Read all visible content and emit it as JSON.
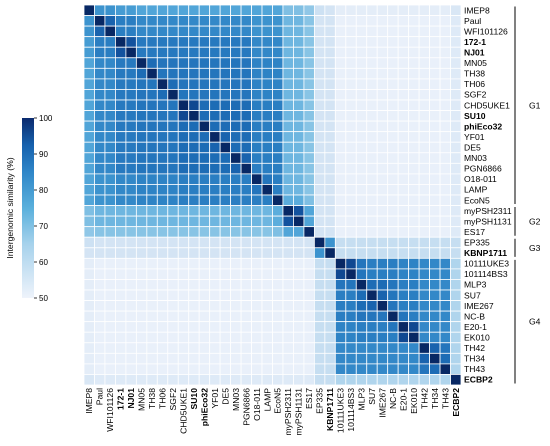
{
  "chart_data": {
    "type": "heatmap",
    "labels": [
      "IMEP8",
      "Paul",
      "WFI101126",
      "172-1",
      "NJ01",
      "MN05",
      "TH38",
      "TH06",
      "SGF2",
      "CHD5UKE1",
      "SU10",
      "phiEco32",
      "YF01",
      "DE5",
      "MN03",
      "PGN6866",
      "O18-011",
      "LAMP",
      "EcoN5",
      "myPSH2311",
      "myPSH1131",
      "ES17",
      "EP335",
      "KBNP1711",
      "10111UKE3",
      "101114BS3",
      "MLP3",
      "SU7",
      "IME267",
      "NC-B",
      "E20-1",
      "EK010",
      "TH42",
      "TH34",
      "TH43",
      "ECBP2"
    ],
    "bold_labels": [
      "172-1",
      "NJ01",
      "SU10",
      "phiEco32",
      "KBNP1711",
      "ECBP2"
    ],
    "groups": [
      {
        "name": "G1",
        "start": 0,
        "end": 18
      },
      {
        "name": "G2",
        "start": 19,
        "end": 21
      },
      {
        "name": "G3",
        "start": 22,
        "end": 23
      },
      {
        "name": "G4",
        "start": 24,
        "end": 35
      }
    ],
    "colorbar": {
      "label": "Intergenomic similarity (%)",
      "min": 50,
      "max": 100,
      "ticks": [
        50,
        60,
        70,
        80,
        90,
        100
      ]
    },
    "cells_note": "pairwise similarity values estimated from colour; matrix is symmetric, diagonal = 100",
    "values": [
      [
        100,
        76,
        76,
        74,
        74,
        72,
        72,
        72,
        72,
        72,
        72,
        72,
        72,
        72,
        72,
        72,
        72,
        72,
        72,
        66,
        66,
        64,
        56,
        55,
        52,
        52,
        52,
        52,
        52,
        52,
        52,
        52,
        52,
        52,
        52,
        54
      ],
      [
        76,
        100,
        86,
        80,
        80,
        78,
        78,
        78,
        78,
        78,
        78,
        78,
        78,
        78,
        78,
        78,
        76,
        76,
        76,
        68,
        68,
        65,
        55,
        55,
        51,
        51,
        51,
        51,
        51,
        51,
        51,
        51,
        51,
        51,
        51,
        53
      ],
      [
        76,
        86,
        100,
        80,
        80,
        78,
        78,
        78,
        78,
        78,
        78,
        78,
        78,
        78,
        78,
        78,
        76,
        76,
        76,
        68,
        68,
        65,
        55,
        55,
        51,
        51,
        51,
        51,
        51,
        51,
        51,
        51,
        51,
        51,
        51,
        53
      ],
      [
        74,
        80,
        80,
        100,
        90,
        81,
        81,
        81,
        81,
        81,
        81,
        81,
        81,
        81,
        81,
        81,
        78,
        78,
        78,
        68,
        68,
        65,
        55,
        55,
        51,
        51,
        51,
        51,
        51,
        51,
        51,
        51,
        51,
        51,
        51,
        53
      ],
      [
        74,
        80,
        80,
        90,
        100,
        81,
        81,
        81,
        81,
        81,
        81,
        81,
        81,
        81,
        81,
        81,
        78,
        78,
        78,
        68,
        68,
        65,
        55,
        55,
        51,
        51,
        51,
        51,
        51,
        51,
        51,
        51,
        51,
        51,
        51,
        53
      ],
      [
        72,
        78,
        78,
        81,
        81,
        100,
        84,
        82,
        82,
        82,
        82,
        82,
        82,
        82,
        82,
        82,
        79,
        79,
        79,
        68,
        68,
        65,
        55,
        55,
        51,
        51,
        51,
        51,
        51,
        51,
        51,
        51,
        51,
        51,
        51,
        53
      ],
      [
        72,
        78,
        78,
        81,
        81,
        84,
        100,
        82,
        82,
        82,
        82,
        82,
        82,
        82,
        82,
        82,
        79,
        79,
        79,
        68,
        68,
        65,
        55,
        55,
        51,
        51,
        51,
        51,
        51,
        51,
        51,
        51,
        51,
        51,
        51,
        53
      ],
      [
        72,
        78,
        78,
        81,
        81,
        82,
        82,
        100,
        84,
        82,
        82,
        82,
        82,
        82,
        82,
        82,
        79,
        79,
        79,
        68,
        68,
        65,
        55,
        55,
        51,
        51,
        51,
        51,
        51,
        51,
        51,
        51,
        51,
        51,
        51,
        53
      ],
      [
        72,
        78,
        78,
        81,
        81,
        82,
        82,
        84,
        100,
        82,
        82,
        82,
        82,
        82,
        82,
        82,
        79,
        79,
        79,
        68,
        68,
        65,
        55,
        55,
        51,
        51,
        51,
        51,
        51,
        51,
        51,
        51,
        51,
        51,
        51,
        53
      ],
      [
        72,
        78,
        78,
        81,
        81,
        82,
        82,
        82,
        82,
        100,
        92,
        84,
        84,
        84,
        84,
        84,
        80,
        80,
        80,
        68,
        68,
        65,
        55,
        55,
        51,
        51,
        51,
        51,
        51,
        51,
        51,
        51,
        51,
        51,
        51,
        53
      ],
      [
        72,
        78,
        78,
        81,
        81,
        82,
        82,
        82,
        82,
        92,
        100,
        84,
        84,
        84,
        84,
        84,
        80,
        80,
        80,
        68,
        68,
        65,
        55,
        55,
        51,
        51,
        51,
        51,
        51,
        51,
        51,
        51,
        51,
        51,
        51,
        53
      ],
      [
        72,
        78,
        78,
        81,
        81,
        82,
        82,
        82,
        82,
        84,
        84,
        100,
        84,
        84,
        84,
        84,
        80,
        80,
        80,
        68,
        68,
        65,
        55,
        55,
        51,
        51,
        51,
        51,
        51,
        51,
        51,
        51,
        51,
        51,
        51,
        53
      ],
      [
        72,
        78,
        78,
        81,
        81,
        82,
        82,
        82,
        82,
        84,
        84,
        84,
        100,
        86,
        84,
        84,
        80,
        80,
        80,
        68,
        68,
        65,
        55,
        55,
        51,
        51,
        51,
        51,
        51,
        51,
        51,
        51,
        51,
        51,
        51,
        53
      ],
      [
        72,
        78,
        78,
        81,
        81,
        82,
        82,
        82,
        82,
        84,
        84,
        84,
        86,
        100,
        84,
        84,
        80,
        80,
        80,
        68,
        68,
        65,
        55,
        55,
        51,
        51,
        51,
        51,
        51,
        51,
        51,
        51,
        51,
        51,
        51,
        53
      ],
      [
        72,
        78,
        78,
        81,
        81,
        82,
        82,
        82,
        82,
        84,
        84,
        84,
        84,
        84,
        100,
        86,
        80,
        80,
        80,
        68,
        68,
        65,
        55,
        55,
        51,
        51,
        51,
        51,
        51,
        51,
        51,
        51,
        51,
        51,
        51,
        53
      ],
      [
        72,
        78,
        78,
        81,
        81,
        82,
        82,
        82,
        82,
        84,
        84,
        84,
        84,
        84,
        86,
        100,
        80,
        80,
        80,
        68,
        68,
        65,
        55,
        55,
        51,
        51,
        51,
        51,
        51,
        51,
        51,
        51,
        51,
        51,
        51,
        53
      ],
      [
        72,
        76,
        76,
        78,
        78,
        79,
        79,
        79,
        79,
        80,
        80,
        80,
        80,
        80,
        80,
        80,
        100,
        82,
        80,
        68,
        68,
        65,
        55,
        55,
        51,
        51,
        51,
        51,
        51,
        51,
        51,
        51,
        51,
        51,
        51,
        53
      ],
      [
        72,
        76,
        76,
        78,
        78,
        79,
        79,
        79,
        79,
        80,
        80,
        80,
        80,
        80,
        80,
        80,
        82,
        100,
        80,
        68,
        68,
        65,
        55,
        55,
        51,
        51,
        51,
        51,
        51,
        51,
        51,
        51,
        51,
        51,
        51,
        53
      ],
      [
        72,
        76,
        76,
        78,
        78,
        79,
        79,
        79,
        79,
        80,
        80,
        80,
        80,
        80,
        80,
        80,
        80,
        80,
        100,
        70,
        70,
        66,
        55,
        55,
        51,
        51,
        51,
        51,
        51,
        51,
        51,
        51,
        51,
        51,
        51,
        53
      ],
      [
        66,
        68,
        68,
        68,
        68,
        68,
        68,
        68,
        68,
        68,
        68,
        68,
        68,
        68,
        68,
        68,
        68,
        68,
        70,
        100,
        90,
        72,
        55,
        55,
        51,
        51,
        51,
        51,
        51,
        51,
        51,
        51,
        51,
        51,
        51,
        53
      ],
      [
        66,
        68,
        68,
        68,
        68,
        68,
        68,
        68,
        68,
        68,
        68,
        68,
        68,
        68,
        68,
        68,
        68,
        68,
        70,
        90,
        100,
        72,
        55,
        55,
        51,
        51,
        51,
        51,
        51,
        51,
        51,
        51,
        51,
        51,
        51,
        53
      ],
      [
        64,
        65,
        65,
        65,
        65,
        65,
        65,
        65,
        65,
        65,
        65,
        65,
        65,
        65,
        65,
        65,
        65,
        65,
        66,
        72,
        72,
        100,
        55,
        55,
        51,
        51,
        51,
        51,
        51,
        51,
        51,
        51,
        51,
        51,
        51,
        53
      ],
      [
        56,
        55,
        55,
        55,
        55,
        55,
        55,
        55,
        55,
        55,
        55,
        55,
        55,
        55,
        55,
        55,
        55,
        55,
        55,
        55,
        55,
        55,
        100,
        76,
        57,
        57,
        57,
        57,
        57,
        57,
        57,
        57,
        57,
        57,
        57,
        57
      ],
      [
        55,
        55,
        55,
        55,
        55,
        55,
        55,
        55,
        55,
        55,
        55,
        55,
        55,
        55,
        55,
        55,
        55,
        55,
        55,
        55,
        55,
        55,
        76,
        100,
        57,
        57,
        57,
        57,
        57,
        57,
        57,
        57,
        57,
        57,
        57,
        57
      ],
      [
        52,
        51,
        51,
        51,
        51,
        51,
        51,
        51,
        51,
        51,
        51,
        51,
        51,
        51,
        51,
        51,
        51,
        51,
        51,
        51,
        51,
        51,
        57,
        57,
        100,
        92,
        82,
        80,
        80,
        80,
        79,
        79,
        78,
        78,
        78,
        60
      ],
      [
        52,
        51,
        51,
        51,
        51,
        51,
        51,
        51,
        51,
        51,
        51,
        51,
        51,
        51,
        51,
        51,
        51,
        51,
        51,
        51,
        51,
        51,
        57,
        57,
        92,
        100,
        82,
        80,
        80,
        80,
        79,
        79,
        78,
        78,
        78,
        60
      ],
      [
        52,
        51,
        51,
        51,
        51,
        51,
        51,
        51,
        51,
        51,
        51,
        51,
        51,
        51,
        51,
        51,
        51,
        51,
        51,
        51,
        51,
        51,
        57,
        57,
        82,
        82,
        100,
        84,
        84,
        82,
        80,
        80,
        78,
        78,
        78,
        60
      ],
      [
        52,
        51,
        51,
        51,
        51,
        51,
        51,
        51,
        51,
        51,
        51,
        51,
        51,
        51,
        51,
        51,
        51,
        51,
        51,
        51,
        51,
        51,
        57,
        57,
        80,
        80,
        84,
        100,
        86,
        82,
        80,
        80,
        78,
        78,
        78,
        60
      ],
      [
        52,
        51,
        51,
        51,
        51,
        51,
        51,
        51,
        51,
        51,
        51,
        51,
        51,
        51,
        51,
        51,
        51,
        51,
        51,
        51,
        51,
        51,
        57,
        57,
        80,
        80,
        84,
        86,
        100,
        82,
        80,
        80,
        78,
        78,
        78,
        60
      ],
      [
        52,
        51,
        51,
        51,
        51,
        51,
        51,
        51,
        51,
        51,
        51,
        51,
        51,
        51,
        51,
        51,
        51,
        51,
        51,
        51,
        51,
        51,
        57,
        57,
        80,
        80,
        82,
        82,
        82,
        100,
        82,
        80,
        78,
        78,
        78,
        60
      ],
      [
        52,
        51,
        51,
        51,
        51,
        51,
        51,
        51,
        51,
        51,
        51,
        51,
        51,
        51,
        51,
        51,
        51,
        51,
        51,
        51,
        51,
        51,
        57,
        57,
        79,
        79,
        80,
        80,
        80,
        82,
        100,
        92,
        78,
        78,
        78,
        60
      ],
      [
        52,
        51,
        51,
        51,
        51,
        51,
        51,
        51,
        51,
        51,
        51,
        51,
        51,
        51,
        51,
        51,
        51,
        51,
        51,
        51,
        51,
        51,
        57,
        57,
        79,
        79,
        80,
        80,
        80,
        80,
        92,
        100,
        78,
        78,
        78,
        60
      ],
      [
        52,
        51,
        51,
        51,
        51,
        51,
        51,
        51,
        51,
        51,
        51,
        51,
        51,
        51,
        51,
        51,
        51,
        51,
        51,
        51,
        51,
        51,
        57,
        57,
        78,
        78,
        78,
        78,
        78,
        78,
        78,
        78,
        100,
        86,
        82,
        60
      ],
      [
        52,
        51,
        51,
        51,
        51,
        51,
        51,
        51,
        51,
        51,
        51,
        51,
        51,
        51,
        51,
        51,
        51,
        51,
        51,
        51,
        51,
        51,
        57,
        57,
        78,
        78,
        78,
        78,
        78,
        78,
        78,
        78,
        86,
        100,
        84,
        60
      ],
      [
        52,
        51,
        51,
        51,
        51,
        51,
        51,
        51,
        51,
        51,
        51,
        51,
        51,
        51,
        51,
        51,
        51,
        51,
        51,
        51,
        51,
        51,
        57,
        57,
        78,
        78,
        78,
        78,
        78,
        78,
        78,
        78,
        82,
        84,
        100,
        60
      ],
      [
        54,
        53,
        53,
        53,
        53,
        53,
        53,
        53,
        53,
        53,
        53,
        53,
        53,
        53,
        53,
        53,
        53,
        53,
        53,
        53,
        53,
        53,
        57,
        57,
        60,
        60,
        60,
        60,
        60,
        60,
        60,
        60,
        60,
        60,
        60,
        100
      ]
    ]
  }
}
